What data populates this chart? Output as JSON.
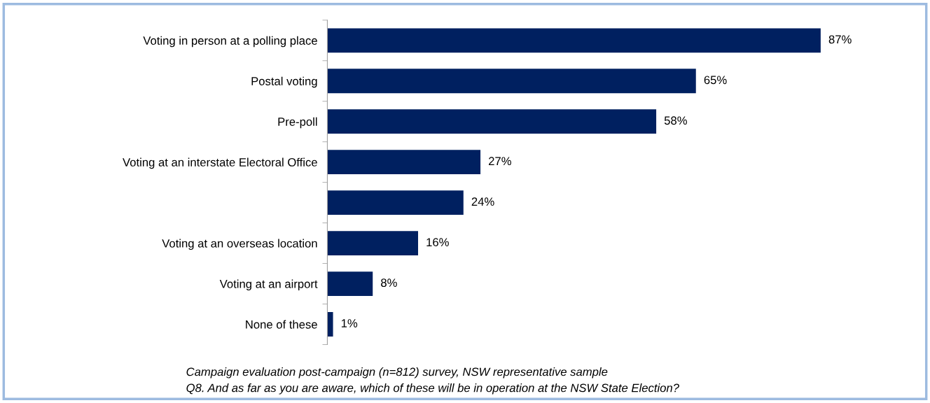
{
  "chart_data": {
    "type": "bar",
    "orientation": "horizontal",
    "categories": [
      "Voting in person at a polling place",
      "Postal voting",
      "Pre-poll",
      "Voting at an interstate Electoral Office",
      null,
      "Voting at an overseas location",
      "Voting at an airport",
      "None of these"
    ],
    "values": [
      87,
      65,
      58,
      27,
      24,
      16,
      8,
      1
    ],
    "value_labels": [
      "87%",
      "65%",
      "58%",
      "27%",
      "24%",
      "16%",
      "8%",
      "1%"
    ],
    "color": "#002060",
    "grid": false,
    "legend": false,
    "tick_labels": "y",
    "annotations": [
      "Campaign evaluation post-campaign (n=812) survey, NSW representative sample",
      "Q8. And as far as you are aware, which of these will be in operation at the NSW State Election?"
    ]
  }
}
